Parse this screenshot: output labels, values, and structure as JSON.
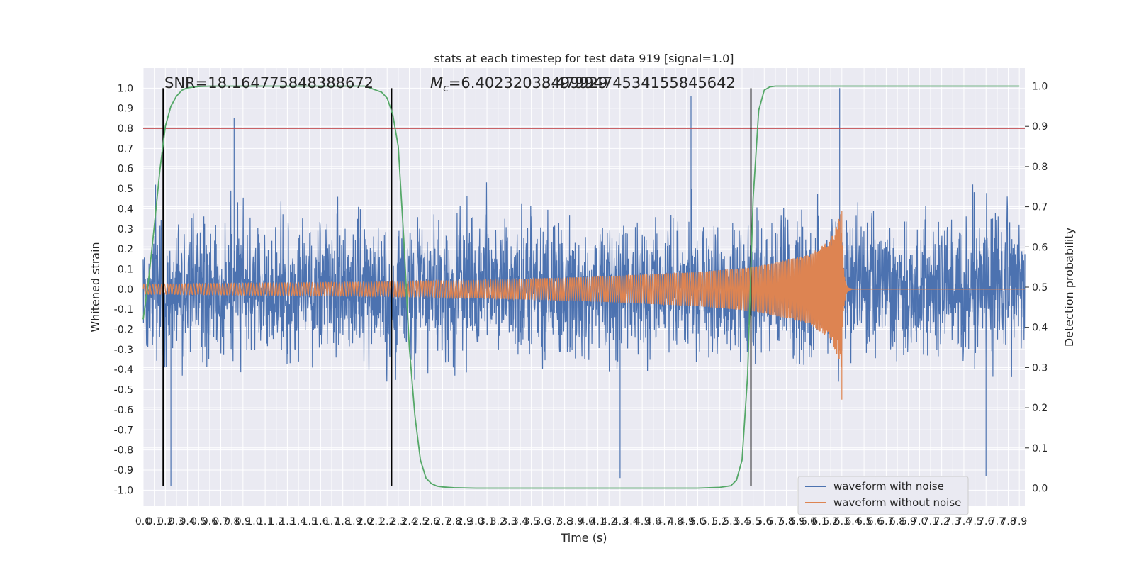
{
  "chart_data": {
    "type": "line",
    "title": "stats at each timestep for test data 919 [signal=1.0]",
    "xlabel": "Time (s)",
    "ylabel": "Whitened strain",
    "y2label": "Detection probability",
    "xlim": [
      0.0,
      7.95
    ],
    "ylim": [
      -1.08,
      1.1
    ],
    "y2lim": [
      -0.045,
      1.045
    ],
    "x_ticks": [
      "0.0",
      "0.1",
      "0.2",
      "0.3",
      "0.4",
      "0.5",
      "0.6",
      "0.7",
      "0.8",
      "0.9",
      "1.0",
      "1.1",
      "1.2",
      "1.3",
      "1.4",
      "1.5",
      "1.6",
      "1.7",
      "1.8",
      "1.9",
      "2.0",
      "2.1",
      "2.2",
      "2.3",
      "2.4",
      "2.5",
      "2.6",
      "2.7",
      "2.8",
      "2.9",
      "3.0",
      "3.1",
      "3.2",
      "3.3",
      "3.4",
      "3.5",
      "3.6",
      "3.7",
      "3.8",
      "3.9",
      "4.0",
      "4.1",
      "4.2",
      "4.3",
      "4.4",
      "4.5",
      "4.6",
      "4.7",
      "4.8",
      "4.9",
      "5.0",
      "5.1",
      "5.2",
      "5.3",
      "5.4",
      "5.5",
      "5.6",
      "5.7",
      "5.8",
      "5.9",
      "6.0",
      "6.1",
      "6.2",
      "6.3",
      "6.4",
      "6.5",
      "6.6",
      "6.7",
      "6.8",
      "6.9",
      "7.0",
      "7.1",
      "7.2",
      "7.3",
      "7.4",
      "7.5",
      "7.6",
      "7.7",
      "7.8",
      "7.9"
    ],
    "y_ticks": [
      "-1.0",
      "-0.9",
      "-0.8",
      "-0.7",
      "-0.6",
      "-0.5",
      "-0.4",
      "-0.3",
      "-0.2",
      "-0.1",
      "0.0",
      "0.1",
      "0.2",
      "0.3",
      "0.4",
      "0.5",
      "0.6",
      "0.7",
      "0.8",
      "0.9",
      "1.0"
    ],
    "y2_ticks": [
      "0.0",
      "0.1",
      "0.2",
      "0.3",
      "0.4",
      "0.5",
      "0.6",
      "0.7",
      "0.8",
      "0.9",
      "1.0"
    ],
    "annotations": {
      "snr": "SNR=18.164775848388672",
      "mc_prefix": "M",
      "mc_sub": "c",
      "mc_value": "=6.40232033499929",
      "mc_overlap": "8.4799474534155845642"
    },
    "threshold": {
      "axis": "y",
      "value": 0.8,
      "color": "#c44e52"
    },
    "vlines": [
      0.18,
      2.24,
      5.48
    ],
    "vline_range": [
      -0.98,
      1.0
    ],
    "series": [
      {
        "name": "waveform with noise",
        "color": "#4c72b0",
        "axis": "y",
        "kind": "noise",
        "amplitude_envelope": {
          "typical": 0.4,
          "max": 1.0,
          "min": -0.98
        },
        "peak_values": [
          {
            "x": 0.82,
            "y": 0.85
          },
          {
            "x": 0.25,
            "y": -0.98
          },
          {
            "x": 4.3,
            "y": -0.94
          },
          {
            "x": 4.94,
            "y": 0.96
          },
          {
            "x": 6.28,
            "y": 1.0
          },
          {
            "x": 7.6,
            "y": -0.93
          }
        ]
      },
      {
        "name": "waveform without noise",
        "color": "#dd8452",
        "axis": "y",
        "kind": "chirp",
        "envelope_points": [
          [
            0.0,
            0.025
          ],
          [
            2.0,
            0.035
          ],
          [
            3.0,
            0.045
          ],
          [
            4.0,
            0.06
          ],
          [
            5.0,
            0.085
          ],
          [
            5.5,
            0.11
          ],
          [
            6.0,
            0.17
          ],
          [
            6.2,
            0.25
          ],
          [
            6.3,
            0.39
          ]
        ],
        "merger_time": 6.3
      },
      {
        "name": "detection probability",
        "color": "#55a868",
        "axis": "y2",
        "kind": "line",
        "x": [
          0.0,
          0.05,
          0.1,
          0.15,
          0.2,
          0.25,
          0.3,
          0.35,
          0.4,
          0.5,
          0.6,
          0.8,
          1.0,
          1.5,
          2.0,
          2.1,
          2.15,
          2.2,
          2.25,
          2.3,
          2.35,
          2.4,
          2.45,
          2.5,
          2.55,
          2.6,
          2.65,
          2.7,
          2.8,
          3.0,
          4.0,
          5.0,
          5.2,
          5.3,
          5.35,
          5.4,
          5.45,
          5.5,
          5.55,
          5.6,
          5.65,
          5.7,
          5.8,
          6.0,
          7.0,
          7.9
        ],
        "y": [
          0.42,
          0.52,
          0.65,
          0.79,
          0.9,
          0.95,
          0.975,
          0.99,
          0.996,
          0.999,
          1.0,
          1.0,
          1.0,
          1.0,
          1.0,
          0.99,
          0.985,
          0.97,
          0.93,
          0.85,
          0.62,
          0.35,
          0.18,
          0.07,
          0.025,
          0.011,
          0.005,
          0.003,
          0.001,
          0.0,
          0.0,
          0.0,
          0.002,
          0.006,
          0.02,
          0.07,
          0.28,
          0.72,
          0.94,
          0.99,
          0.998,
          1.0,
          1.0,
          1.0,
          1.0,
          1.0
        ]
      }
    ],
    "legend": {
      "placement": "lower-right",
      "entries": [
        "waveform with noise",
        "waveform without noise"
      ]
    },
    "grid": true
  },
  "colors": {
    "axes_background": "#eaeaf2",
    "grid": "#ffffff",
    "vlines": "#000000"
  }
}
